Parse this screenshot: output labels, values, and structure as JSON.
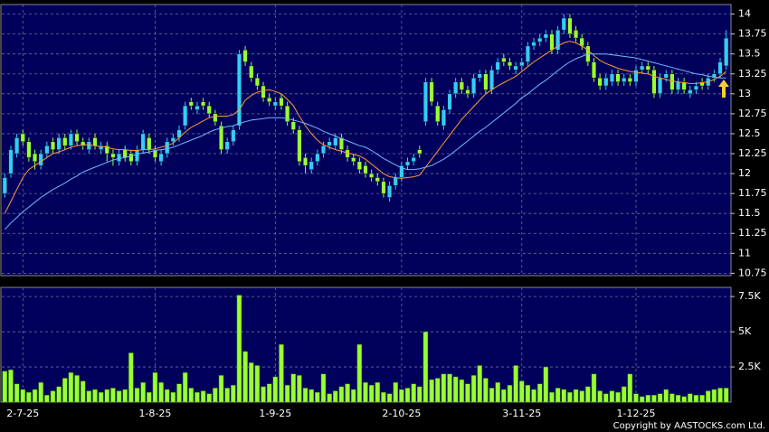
{
  "chart_data": [
    {
      "type": "candlestick",
      "x": [
        null,
        null,
        null,
        "2-7-25",
        null,
        null,
        null,
        null,
        null,
        null,
        null,
        null,
        null,
        null,
        null,
        null,
        null,
        null,
        null,
        null,
        null,
        null,
        null,
        null,
        null,
        "1-8-25",
        null,
        null,
        null,
        null,
        null,
        null,
        null,
        null,
        null,
        null,
        null,
        null,
        null,
        null,
        null,
        null,
        null,
        null,
        null,
        "1-9-25",
        null,
        null,
        null,
        null,
        null,
        null,
        null,
        null,
        null,
        null,
        null,
        null,
        null,
        null,
        null,
        null,
        null,
        null,
        null,
        null,
        "2-10-25",
        null,
        null,
        null,
        null,
        null,
        null,
        null,
        null,
        null,
        null,
        null,
        null,
        null,
        null,
        null,
        null,
        null,
        null,
        null,
        "3-11-25",
        null,
        null,
        null,
        null,
        null,
        null,
        null,
        null,
        null,
        null,
        null,
        null,
        null,
        null,
        null,
        null,
        null,
        null,
        "1-12-25",
        null,
        null,
        null,
        null,
        null,
        null,
        null,
        null,
        null,
        null,
        null,
        null,
        null,
        null,
        null
      ],
      "open": [
        11.75,
        12.0,
        12.25,
        12.5,
        12.4,
        12.25,
        12.1,
        12.25,
        12.4,
        12.3,
        12.45,
        12.35,
        12.5,
        12.4,
        12.3,
        12.45,
        12.3,
        12.35,
        12.25,
        12.15,
        12.3,
        12.25,
        12.15,
        12.3,
        12.45,
        12.3,
        12.15,
        12.25,
        12.4,
        12.45,
        12.6,
        12.9,
        12.8,
        12.9,
        12.85,
        12.75,
        12.6,
        12.3,
        12.4,
        12.6,
        13.55,
        13.35,
        13.2,
        13.1,
        12.95,
        12.85,
        12.95,
        12.85,
        12.65,
        12.55,
        12.2,
        12.05,
        12.15,
        12.25,
        12.35,
        12.35,
        12.45,
        12.3,
        12.2,
        12.15,
        12.1,
        12.0,
        11.95,
        11.9,
        11.7,
        11.85,
        11.95,
        12.1,
        12.15,
        12.3,
        12.65,
        13.15,
        12.85,
        12.6,
        12.8,
        13.0,
        13.15,
        13.05,
        13.0,
        13.2,
        13.25,
        13.05,
        13.3,
        13.45,
        13.4,
        13.3,
        13.35,
        13.4,
        13.6,
        13.65,
        13.7,
        13.75,
        13.55,
        13.8,
        13.95,
        13.8,
        13.7,
        13.6,
        13.4,
        13.2,
        13.1,
        13.15,
        13.25,
        13.15,
        13.2,
        13.15,
        13.3,
        13.35,
        13.3,
        13.0,
        13.2,
        13.25,
        13.05,
        13.15,
        13.0,
        13.05,
        13.15,
        13.1,
        13.2,
        13.25,
        13.35
      ],
      "high": [
        12.0,
        12.35,
        12.5,
        12.55,
        12.45,
        12.3,
        12.3,
        12.4,
        12.45,
        12.5,
        12.5,
        12.55,
        12.55,
        12.45,
        12.45,
        12.5,
        12.4,
        12.4,
        12.3,
        12.3,
        12.35,
        12.3,
        12.35,
        12.55,
        12.5,
        12.35,
        12.3,
        12.45,
        12.5,
        12.6,
        12.9,
        12.95,
        12.9,
        12.95,
        12.9,
        12.8,
        12.65,
        12.45,
        12.6,
        13.55,
        13.6,
        13.4,
        13.25,
        13.15,
        13.0,
        12.95,
        13.0,
        12.9,
        12.7,
        12.6,
        12.25,
        12.2,
        12.3,
        12.4,
        12.45,
        12.5,
        12.5,
        12.35,
        12.25,
        12.2,
        12.15,
        12.05,
        12.0,
        11.95,
        11.9,
        12.0,
        12.15,
        12.2,
        12.25,
        12.35,
        13.2,
        13.2,
        12.9,
        12.85,
        13.05,
        13.2,
        13.2,
        13.1,
        13.25,
        13.3,
        13.3,
        13.35,
        13.45,
        13.5,
        13.45,
        13.4,
        13.45,
        13.65,
        13.7,
        13.75,
        13.8,
        13.8,
        13.85,
        14.0,
        14.0,
        13.85,
        13.75,
        13.65,
        13.45,
        13.25,
        13.25,
        13.3,
        13.3,
        13.25,
        13.25,
        13.35,
        13.4,
        13.4,
        13.35,
        13.25,
        13.3,
        13.3,
        13.2,
        13.2,
        13.1,
        13.15,
        13.2,
        13.25,
        13.3,
        13.45,
        13.8
      ],
      "low": [
        11.7,
        11.95,
        12.2,
        12.35,
        12.15,
        12.05,
        12.05,
        12.2,
        12.25,
        12.25,
        12.3,
        12.3,
        12.35,
        12.3,
        12.25,
        12.3,
        12.25,
        12.15,
        12.1,
        12.1,
        12.15,
        12.1,
        12.1,
        12.25,
        12.25,
        12.15,
        12.1,
        12.2,
        12.35,
        12.4,
        12.55,
        12.8,
        12.75,
        12.8,
        12.7,
        12.6,
        12.25,
        12.25,
        12.35,
        12.55,
        13.35,
        13.15,
        13.05,
        12.9,
        12.85,
        12.8,
        12.8,
        12.6,
        12.5,
        12.1,
        12.0,
        12.0,
        12.1,
        12.2,
        12.3,
        12.3,
        12.25,
        12.15,
        12.1,
        12.0,
        11.95,
        11.9,
        11.85,
        11.7,
        11.65,
        11.8,
        11.9,
        12.05,
        12.1,
        12.2,
        12.6,
        12.85,
        12.6,
        12.55,
        12.75,
        12.95,
        13.0,
        12.95,
        12.95,
        13.15,
        13.0,
        13.0,
        13.25,
        13.35,
        13.3,
        13.25,
        13.3,
        13.35,
        13.55,
        13.6,
        13.65,
        13.5,
        13.5,
        13.75,
        13.7,
        13.65,
        13.55,
        13.35,
        13.15,
        13.05,
        13.05,
        13.1,
        13.1,
        13.1,
        13.1,
        13.1,
        13.25,
        13.25,
        12.95,
        12.95,
        13.15,
        13.0,
        13.0,
        13.0,
        12.95,
        13.0,
        13.05,
        13.05,
        13.15,
        13.2,
        13.3
      ],
      "close": [
        11.95,
        12.3,
        12.45,
        12.4,
        12.2,
        12.15,
        12.25,
        12.35,
        12.3,
        12.45,
        12.35,
        12.5,
        12.4,
        12.35,
        12.4,
        12.35,
        12.35,
        12.25,
        12.2,
        12.25,
        12.2,
        12.15,
        12.3,
        12.5,
        12.3,
        12.2,
        12.25,
        12.4,
        12.45,
        12.55,
        12.85,
        12.85,
        12.85,
        12.85,
        12.75,
        12.65,
        12.3,
        12.4,
        12.55,
        13.5,
        13.4,
        13.2,
        13.1,
        12.95,
        12.9,
        12.9,
        12.85,
        12.65,
        12.55,
        12.15,
        12.1,
        12.15,
        12.25,
        12.35,
        12.4,
        12.45,
        12.3,
        12.2,
        12.15,
        12.05,
        12.0,
        11.95,
        11.9,
        11.75,
        11.85,
        11.95,
        12.1,
        12.15,
        12.2,
        12.25,
        13.15,
        12.9,
        12.65,
        12.8,
        13.0,
        13.15,
        13.05,
        13.0,
        13.2,
        13.25,
        13.05,
        13.3,
        13.4,
        13.4,
        13.35,
        13.35,
        13.4,
        13.6,
        13.65,
        13.7,
        13.75,
        13.55,
        13.8,
        13.95,
        13.75,
        13.7,
        13.6,
        13.4,
        13.2,
        13.1,
        13.2,
        13.25,
        13.15,
        13.2,
        13.15,
        13.3,
        13.35,
        13.3,
        13.0,
        13.2,
        13.25,
        13.05,
        13.15,
        13.05,
        13.05,
        13.1,
        13.1,
        13.2,
        13.25,
        13.4,
        13.7
      ],
      "up_color": "#33ccff",
      "down_color": "#99ff33",
      "series": [
        {
          "color": "#ff9933",
          "values": [
            11.5,
            11.65,
            11.8,
            11.95,
            12.05,
            12.1,
            12.15,
            12.2,
            12.25,
            12.27,
            12.3,
            12.33,
            12.35,
            12.36,
            12.36,
            12.35,
            12.34,
            12.33,
            12.31,
            12.3,
            12.3,
            12.29,
            12.29,
            12.3,
            12.3,
            12.31,
            12.33,
            12.35,
            12.38,
            12.45,
            12.52,
            12.58,
            12.62,
            12.66,
            12.7,
            12.72,
            12.72,
            12.72,
            12.74,
            12.8,
            12.92,
            12.98,
            13.02,
            13.04,
            13.05,
            13.03,
            13.0,
            12.93,
            12.85,
            12.72,
            12.6,
            12.5,
            12.42,
            12.36,
            12.33,
            12.3,
            12.28,
            12.26,
            12.24,
            12.22,
            12.18,
            12.12,
            12.06,
            12.0,
            11.96,
            11.95,
            11.94,
            11.95,
            11.96,
            11.98,
            12.08,
            12.18,
            12.28,
            12.38,
            12.48,
            12.58,
            12.68,
            12.76,
            12.84,
            12.92,
            13.0,
            13.05,
            13.1,
            13.14,
            13.18,
            13.22,
            13.28,
            13.34,
            13.4,
            13.45,
            13.5,
            13.55,
            13.6,
            13.64,
            13.66,
            13.64,
            13.6,
            13.55,
            13.48,
            13.42,
            13.38,
            13.35,
            13.32,
            13.3,
            13.28,
            13.27,
            13.26,
            13.25,
            13.22,
            13.2,
            13.18,
            13.16,
            13.15,
            13.14,
            13.13,
            13.13,
            13.14,
            13.15,
            13.18,
            13.22,
            13.28
          ]
        },
        {
          "color": "#6fb7ff",
          "values": [
            11.3,
            11.38,
            11.45,
            11.52,
            11.58,
            11.64,
            11.7,
            11.75,
            11.8,
            11.84,
            11.88,
            11.93,
            11.97,
            12.02,
            12.05,
            12.08,
            12.11,
            12.14,
            12.17,
            12.19,
            12.2,
            12.22,
            12.24,
            12.26,
            12.27,
            12.29,
            12.3,
            12.31,
            12.33,
            12.36,
            12.39,
            12.42,
            12.45,
            12.48,
            12.52,
            12.55,
            12.57,
            12.59,
            12.6,
            12.63,
            12.65,
            12.67,
            12.68,
            12.69,
            12.7,
            12.7,
            12.7,
            12.69,
            12.67,
            12.65,
            12.63,
            12.6,
            12.57,
            12.53,
            12.5,
            12.47,
            12.44,
            12.41,
            12.38,
            12.35,
            12.33,
            12.29,
            12.24,
            12.19,
            12.15,
            12.11,
            12.07,
            12.05,
            12.05,
            12.06,
            12.08,
            12.1,
            12.14,
            12.18,
            12.23,
            12.29,
            12.35,
            12.41,
            12.47,
            12.53,
            12.58,
            12.64,
            12.7,
            12.76,
            12.82,
            12.88,
            12.95,
            13.0,
            13.06,
            13.12,
            13.17,
            13.23,
            13.29,
            13.35,
            13.4,
            13.44,
            13.47,
            13.5,
            13.5,
            13.5,
            13.5,
            13.49,
            13.48,
            13.47,
            13.46,
            13.45,
            13.43,
            13.41,
            13.39,
            13.37,
            13.35,
            13.33,
            13.31,
            13.29,
            13.27,
            13.25,
            13.24,
            13.22,
            13.21,
            13.2,
            13.2
          ]
        }
      ],
      "ylim": [
        10.72,
        14.12
      ],
      "yticks": [
        10.75,
        11,
        11.25,
        11.5,
        11.75,
        12,
        12.25,
        12.5,
        12.75,
        13,
        13.25,
        13.5,
        13.75,
        14
      ],
      "grid": true
    },
    {
      "type": "bar",
      "values": [
        2200,
        2300,
        1300,
        900,
        700,
        900,
        1400,
        500,
        800,
        1100,
        1700,
        2100,
        1900,
        1500,
        800,
        900,
        700,
        900,
        1000,
        800,
        900,
        3500,
        1000,
        1400,
        700,
        2100,
        1400,
        900,
        700,
        1300,
        2100,
        1000,
        700,
        800,
        600,
        1000,
        1900,
        1000,
        1200,
        7600,
        3600,
        2800,
        2600,
        1100,
        1300,
        1800,
        4100,
        1200,
        2000,
        1900,
        1000,
        900,
        700,
        2000,
        600,
        800,
        1100,
        1300,
        900,
        4100,
        1400,
        1200,
        1400,
        700,
        600,
        1400,
        900,
        1000,
        1300,
        1100,
        5000,
        1600,
        1700,
        2000,
        2000,
        1800,
        1600,
        1300,
        1900,
        2600,
        1700,
        1000,
        1400,
        900,
        1200,
        2600,
        1500,
        1200,
        900,
        1300,
        2500,
        700,
        1000,
        900,
        700,
        900,
        800,
        1100,
        2000,
        800,
        600,
        800,
        700,
        1100,
        2000,
        600,
        400,
        500,
        500,
        600,
        900,
        600,
        500,
        400,
        600,
        500,
        500,
        800,
        900,
        1000,
        1000
      ],
      "color": "#99ff33",
      "ylim": [
        0,
        8150
      ],
      "yticks": [
        {
          "value": 2500,
          "label": "2.5K"
        },
        {
          "value": 5000,
          "label": "5K"
        },
        {
          "value": 7500,
          "label": "7.5K"
        }
      ],
      "grid": true
    }
  ],
  "copyright": "Copyright by AASTOCKS.com Ltd."
}
